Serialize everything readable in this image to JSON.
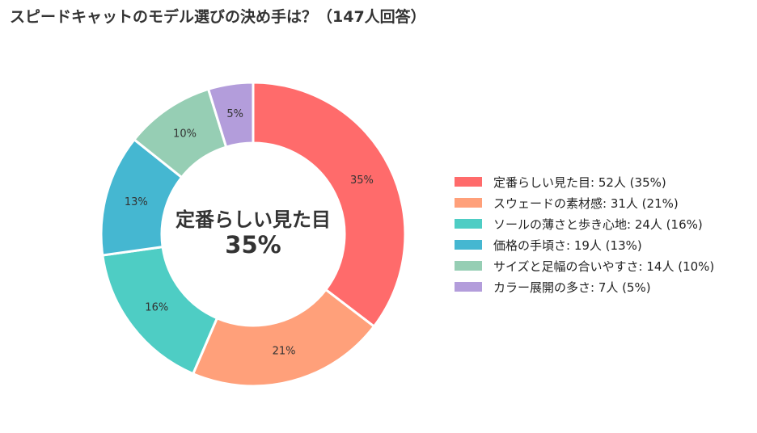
{
  "title": "スピードキャットのモデル選びの決め手は？（147人回答）",
  "center": {
    "label": "定番らしい見た目",
    "value": "35%"
  },
  "chart_data": {
    "type": "pie",
    "donut": true,
    "categories": [
      "定番らしい見た目",
      "スウェードの素材感",
      "ソールの薄さと歩き心地",
      "価格の手頃さ",
      "サイズと足幅の合いやすさ",
      "カラー展開の多さ"
    ],
    "values": [
      52,
      31,
      24,
      19,
      14,
      7
    ],
    "percent_labels": [
      "35%",
      "21%",
      "16%",
      "13%",
      "10%",
      "5%"
    ],
    "legend_labels": [
      "定番らしい見た目:  52人 (35%)",
      "スウェードの素材感:  31人 (21%)",
      "ソールの薄さと歩き心地:  24人 (16%)",
      "価格の手頃さ:  19人 (13%)",
      "サイズと足幅の合いやすさ:  14人 (10%)",
      "カラー展開の多さ:  7人 (5%)"
    ],
    "colors": [
      "#FF6B6B",
      "#FFA07A",
      "#4ECDC4",
      "#45B7D1",
      "#96CEB4",
      "#B39DDB"
    ],
    "total": 147,
    "legend_position": "right"
  }
}
